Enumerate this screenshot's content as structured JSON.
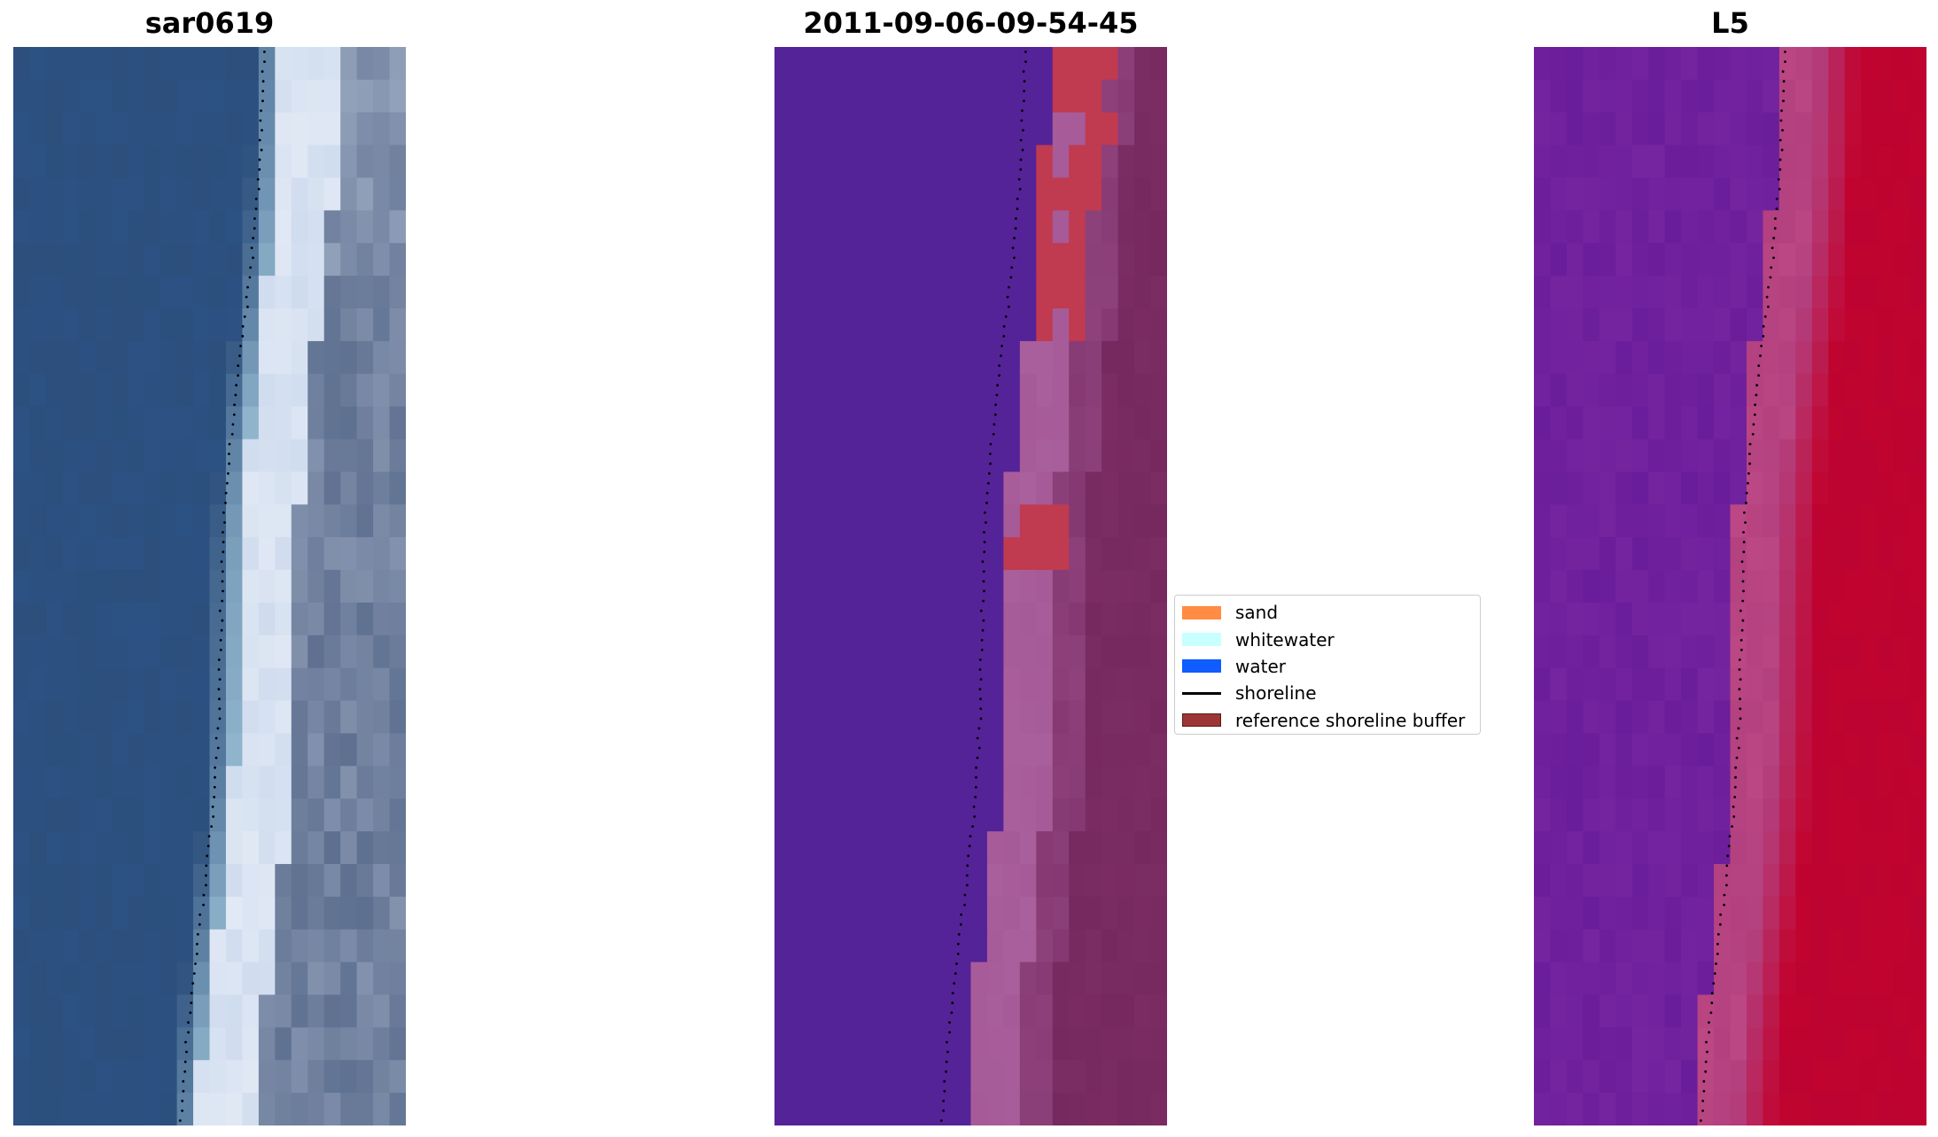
{
  "panels": [
    {
      "id": "rgb",
      "title": "sar0619"
    },
    {
      "id": "classified",
      "title": "2011-09-06-09-54-45"
    },
    {
      "id": "index",
      "title": "L5"
    }
  ],
  "legend": {
    "items": [
      {
        "label": "sand",
        "type": "patch",
        "color": "#ff8c42",
        "edge": "#ff8c42"
      },
      {
        "label": "whitewater",
        "type": "patch",
        "color": "#c8ffff",
        "edge": "#c8ffff"
      },
      {
        "label": "water",
        "type": "patch",
        "color": "#0f5cff",
        "edge": "#0f5cff"
      },
      {
        "label": "shoreline",
        "type": "line",
        "color": "#000000"
      },
      {
        "label": "reference shoreline buffer",
        "type": "patch",
        "color": "#9c3535",
        "edge": "#5a1a1a"
      }
    ]
  },
  "colors": {
    "rgb_water": "#2c4f7c",
    "rgb_foam": "#e8eef7",
    "rgb_sand": "#5e7090",
    "class_water": "#552398",
    "class_sand": "#a65a98",
    "class_inland": "#76295f",
    "class_buffer": "#c03a50",
    "index_low": "#6a1d9a",
    "index_mid": "#b3407f",
    "index_high": "#c1042f"
  }
}
